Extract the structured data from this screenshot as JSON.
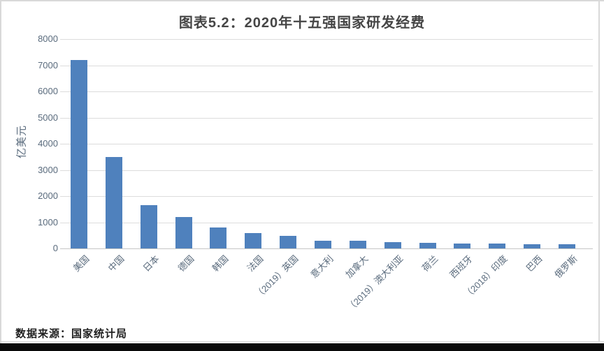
{
  "page": {
    "source_note": "数据来源：国家统计局"
  },
  "colors": {
    "bar": "#4f81bd",
    "gridline": "#dcdcdc",
    "axis_text": "#5a6b7d",
    "title_text": "#454545"
  },
  "chart_data": {
    "type": "bar",
    "title": "图表5.2：2020年十五强国家研发经费",
    "xlabel": "",
    "ylabel": "亿美元",
    "ylim": [
      0,
      8000
    ],
    "yticks": [
      0,
      1000,
      2000,
      3000,
      4000,
      5000,
      6000,
      7000,
      8000
    ],
    "grid": true,
    "legend": "none",
    "categories": [
      "美国",
      "中国",
      "日本",
      "德国",
      "韩国",
      "法国",
      "（2019）英国",
      "意大利",
      "加拿大",
      "（2019）澳大利亚",
      "荷兰",
      "西班牙",
      "（2018）印度",
      "巴西",
      "俄罗斯"
    ],
    "values": [
      7200,
      3500,
      1650,
      1200,
      790,
      580,
      470,
      300,
      290,
      240,
      210,
      180,
      175,
      170,
      170
    ]
  }
}
